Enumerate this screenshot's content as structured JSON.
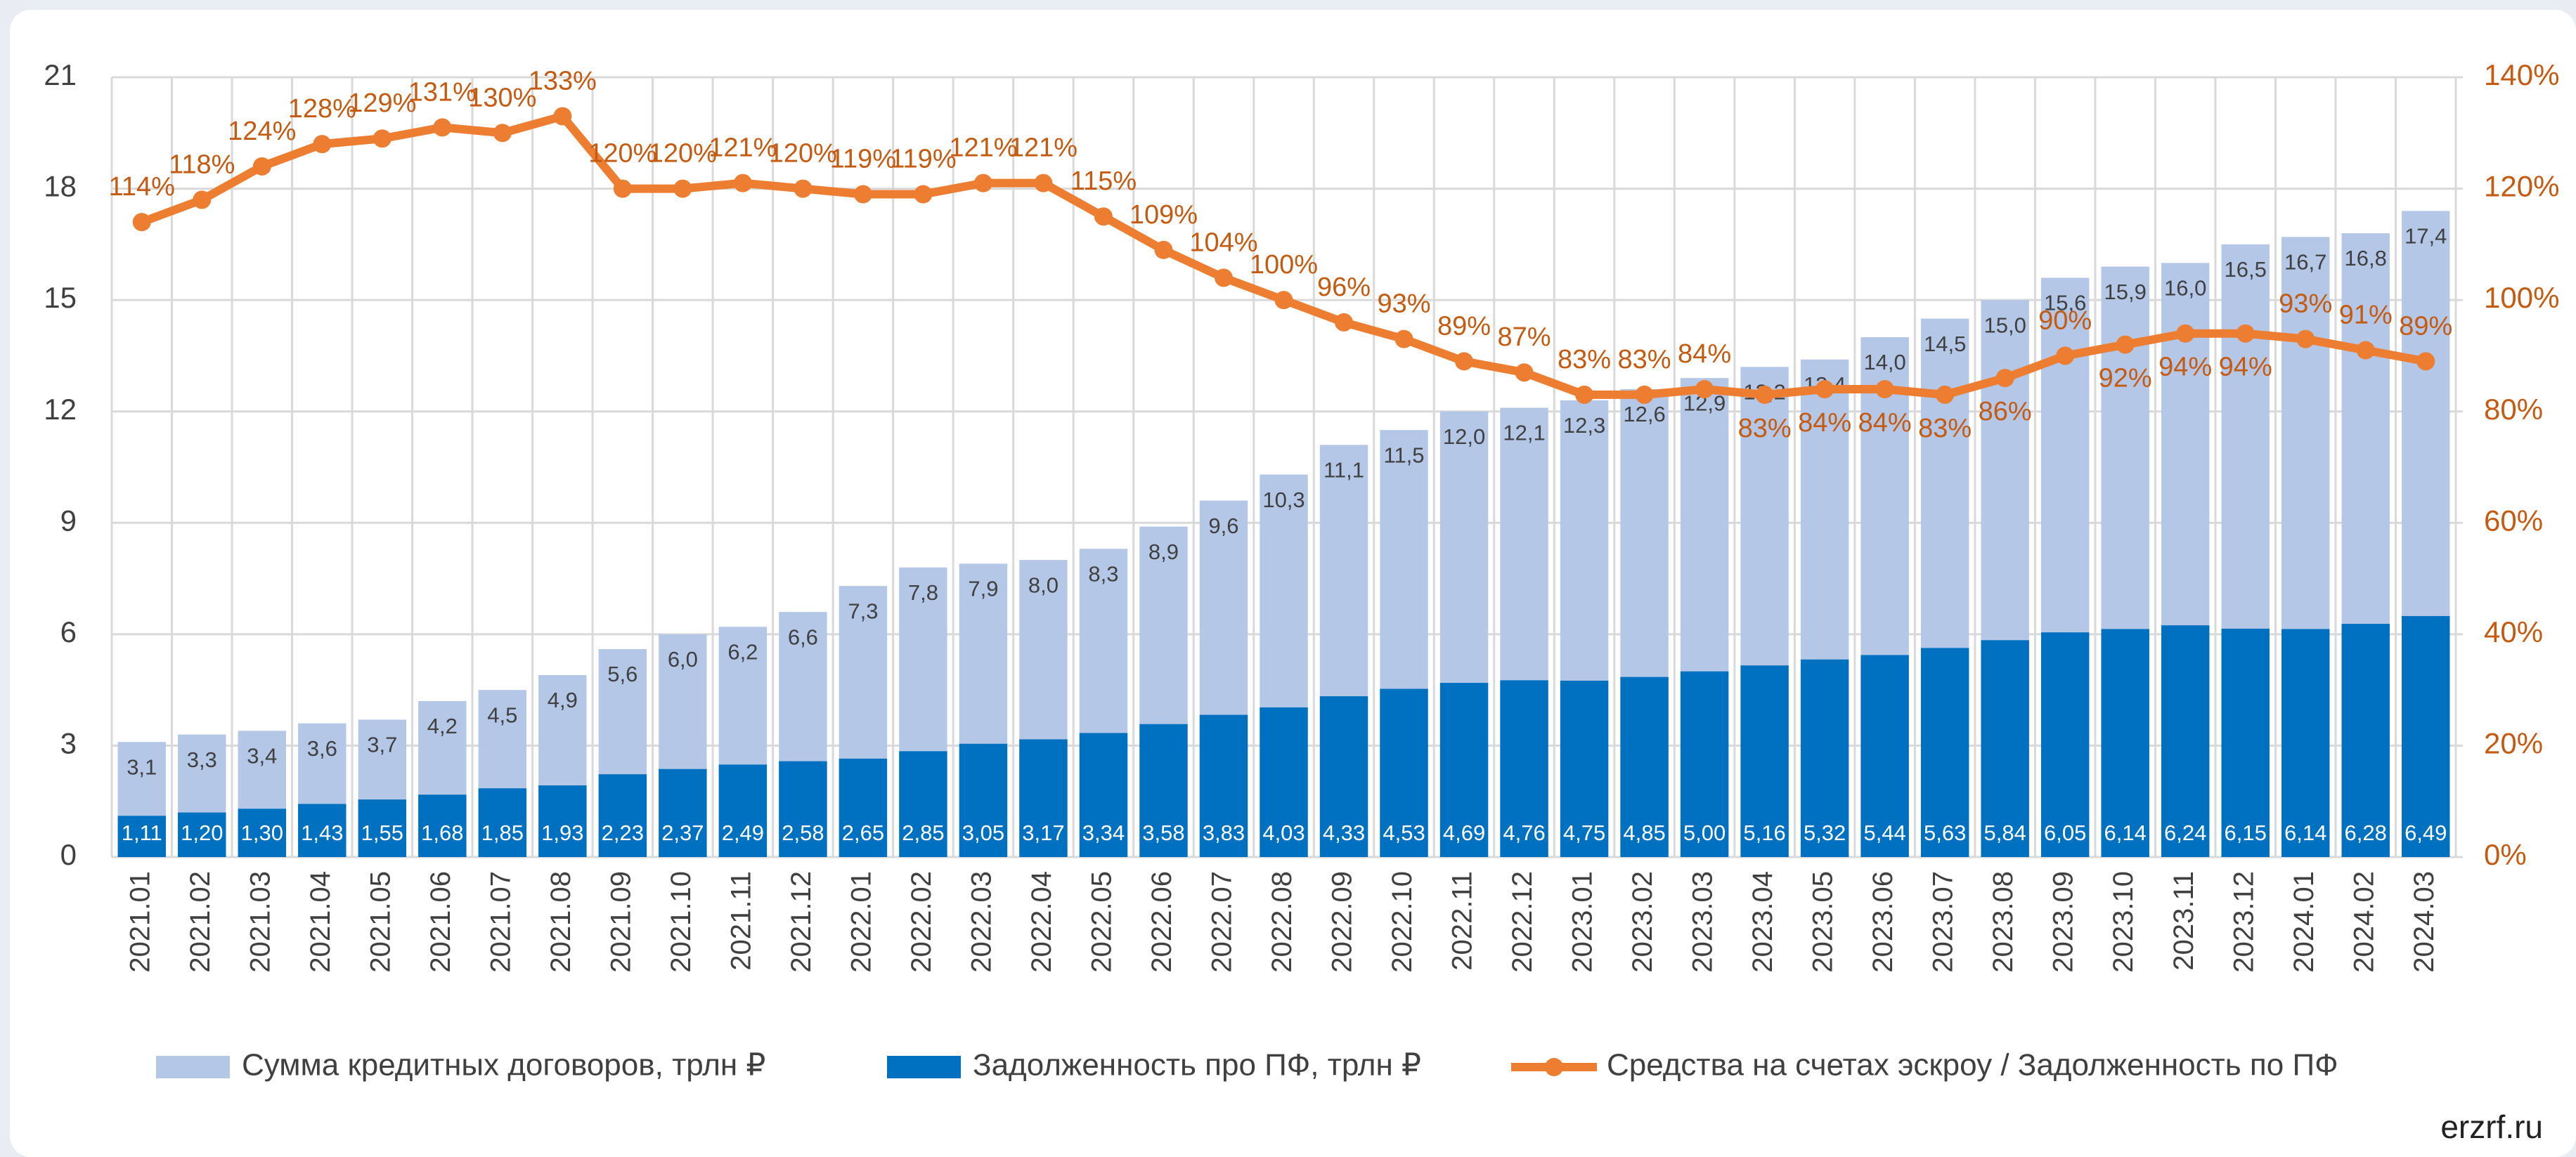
{
  "chart_data": {
    "type": "bar-line",
    "categories": [
      "2021.01",
      "2021.02",
      "2021.03",
      "2021.04",
      "2021.05",
      "2021.06",
      "2021.07",
      "2021.08",
      "2021.09",
      "2021.10",
      "2021.11",
      "2021.12",
      "2022.01",
      "2022.02",
      "2022.03",
      "2022.04",
      "2022.05",
      "2022.06",
      "2022.07",
      "2022.08",
      "2022.09",
      "2022.10",
      "2022.11",
      "2022.12",
      "2023.01",
      "2023.02",
      "2023.03",
      "2023.04",
      "2023.05",
      "2023.06",
      "2023.07",
      "2023.08",
      "2023.09",
      "2023.10",
      "2023.11",
      "2023.12",
      "2024.01",
      "2024.02",
      "2024.03"
    ],
    "series": [
      {
        "name": "Сумма кредитных договоров, трлн ₽",
        "type": "bar",
        "color": "#b4c7e7",
        "values": [
          3.1,
          3.3,
          3.4,
          3.6,
          3.7,
          4.2,
          4.5,
          4.9,
          5.6,
          6.0,
          6.2,
          6.6,
          7.3,
          7.8,
          7.9,
          8.0,
          8.3,
          8.9,
          9.6,
          10.3,
          11.1,
          11.5,
          12.0,
          12.1,
          12.3,
          12.6,
          12.9,
          13.2,
          13.4,
          14.0,
          14.5,
          15.0,
          15.6,
          15.9,
          16.0,
          16.5,
          16.7,
          16.8,
          17.4
        ],
        "value_labels": [
          "3,1",
          "3,3",
          "3,4",
          "3,6",
          "3,7",
          "4,2",
          "4,5",
          "4,9",
          "5,6",
          "6,0",
          "6,2",
          "6,6",
          "7,3",
          "7,8",
          "7,9",
          "8,0",
          "8,3",
          "8,9",
          "9,6",
          "10,3",
          "11,1",
          "11,5",
          "12,0",
          "12,1",
          "12,3",
          "12,6",
          "12,9",
          "13,2",
          "13,4",
          "14,0",
          "14,5",
          "15,0",
          "15,6",
          "15,9",
          "16,0",
          "16,5",
          "16,7",
          "16,8",
          "17,4"
        ]
      },
      {
        "name": "Задолженность про ПФ, трлн ₽",
        "type": "bar",
        "color": "#0070c0",
        "values": [
          1.11,
          1.2,
          1.3,
          1.43,
          1.55,
          1.68,
          1.85,
          1.93,
          2.23,
          2.37,
          2.49,
          2.58,
          2.65,
          2.85,
          3.05,
          3.17,
          3.34,
          3.58,
          3.83,
          4.03,
          4.33,
          4.53,
          4.69,
          4.76,
          4.75,
          4.85,
          5.0,
          5.16,
          5.32,
          5.44,
          5.63,
          5.84,
          6.05,
          6.14,
          6.24,
          6.15,
          6.14,
          6.28,
          6.49
        ],
        "value_labels": [
          "1,11",
          "1,20",
          "1,30",
          "1,43",
          "1,55",
          "1,68",
          "1,85",
          "1,93",
          "2,23",
          "2,37",
          "2,49",
          "2,58",
          "2,65",
          "2,85",
          "3,05",
          "3,17",
          "3,34",
          "3,58",
          "3,83",
          "4,03",
          "4,33",
          "4,53",
          "4,69",
          "4,76",
          "4,75",
          "4,85",
          "5,00",
          "5,16",
          "5,32",
          "5,44",
          "5,63",
          "5,84",
          "6,05",
          "6,14",
          "6,24",
          "6,15",
          "6,14",
          "6,28",
          "6,49"
        ]
      },
      {
        "name": "Средства на счетах эскроу / Задолженность по ПФ",
        "type": "line",
        "axis": "y2",
        "color": "#ed7d31",
        "values": [
          114,
          118,
          124,
          128,
          129,
          131,
          130,
          133,
          120,
          120,
          121,
          120,
          119,
          119,
          121,
          121,
          115,
          109,
          104,
          100,
          96,
          93,
          89,
          87,
          83,
          83,
          84,
          83,
          84,
          84,
          83,
          86,
          90,
          92,
          94,
          94,
          93,
          91,
          89
        ],
        "value_labels": [
          "114%",
          "118%",
          "124%",
          "128%",
          "129%",
          "131%",
          "130%",
          "133%",
          "120%",
          "120%",
          "121%",
          "120%",
          "119%",
          "119%",
          "121%",
          "121%",
          "115%",
          "109%",
          "104%",
          "100%",
          "96%",
          "93%",
          "89%",
          "87%",
          "83%",
          "83%",
          "84%",
          "83%",
          "84%",
          "84%",
          "83%",
          "86%",
          "90%",
          "92%",
          "94%",
          "94%",
          "93%",
          "91%",
          "89%"
        ]
      }
    ],
    "ylim": [
      0,
      21
    ],
    "yticks": [
      0,
      3,
      6,
      9,
      12,
      15,
      18,
      21
    ],
    "y2lim": [
      0,
      140
    ],
    "y2ticks": [
      {
        "value": 0,
        "label": "0%"
      },
      {
        "value": 20,
        "label": "20%"
      },
      {
        "value": 40,
        "label": "40%"
      },
      {
        "value": 60,
        "label": "60%"
      },
      {
        "value": 80,
        "label": "80%"
      },
      {
        "value": 100,
        "label": "100%"
      },
      {
        "value": 120,
        "label": "120%"
      },
      {
        "value": 140,
        "label": "140%"
      }
    ],
    "grid": true,
    "legend": "bottom",
    "watermark": "erzrf.ru"
  }
}
